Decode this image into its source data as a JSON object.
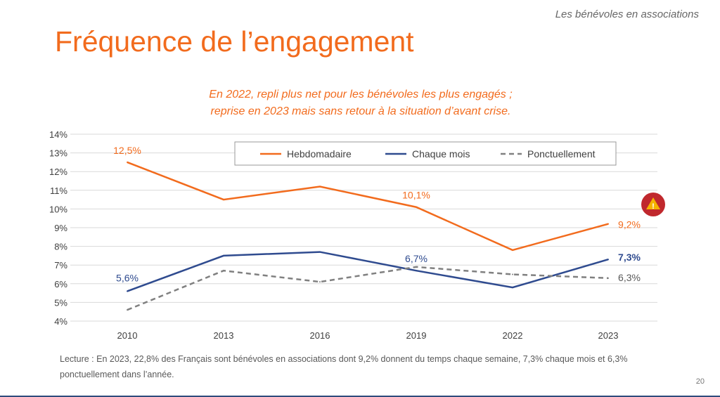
{
  "header": {
    "section": "Les bénévoles en associations",
    "title": "Fréquence de l’engagement",
    "subtitle_lines": [
      "En 2022, repli plus net pour les bénévoles les plus engagés ;",
      "reprise en 2023 mais sans retour à la situation d’avant crise."
    ]
  },
  "footer": {
    "note": "Lecture : En 2023, 22,8% des Français sont bénévoles en associations dont 9,2% donnent du temps chaque semaine, 7,3% chaque mois et 6,3% ponctuellement dans l’année.",
    "page": "20"
  },
  "warning_icon": "warning-icon",
  "chart_data": {
    "type": "line",
    "categories": [
      "2010",
      "2013",
      "2016",
      "2019",
      "2022",
      "2023"
    ],
    "ylim": [
      4,
      14
    ],
    "yticks": [
      "4%",
      "5%",
      "6%",
      "7%",
      "8%",
      "9%",
      "10%",
      "11%",
      "12%",
      "13%",
      "14%"
    ],
    "grid": true,
    "legend": "top-center",
    "series": [
      {
        "name": "Hebdomadaire",
        "color": "#F26B1D",
        "dash": false,
        "values": [
          12.5,
          10.5,
          11.2,
          10.1,
          7.8,
          9.2
        ],
        "labels": {
          "0": "12,5%",
          "3": "10,1%",
          "5": "9,2%"
        }
      },
      {
        "name": "Chaque mois",
        "color": "#2F4B8F",
        "dash": false,
        "values": [
          5.6,
          7.5,
          7.7,
          6.7,
          5.8,
          7.3
        ],
        "labels": {
          "0": "5,6%",
          "3": "6,7%",
          "5": "7,3%"
        }
      },
      {
        "name": "Ponctuellement",
        "color": "#808080",
        "dash": true,
        "values": [
          4.6,
          6.7,
          6.1,
          6.9,
          6.5,
          6.3
        ],
        "labels": {
          "5": "6,3%"
        }
      }
    ]
  }
}
